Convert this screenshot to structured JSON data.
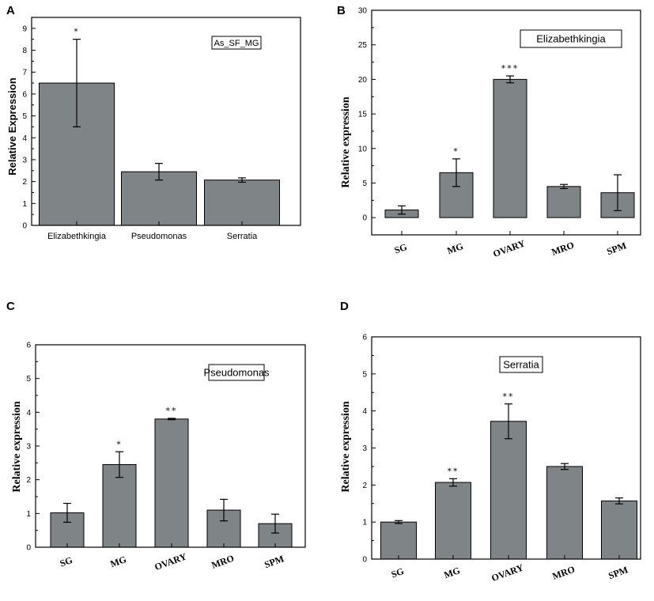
{
  "chart_data": [
    {
      "panel": "A",
      "type": "bar",
      "categories": [
        "Elizabethkingia",
        "Pseudomonas",
        "Serratia"
      ],
      "values": [
        6.5,
        2.45,
        2.07
      ],
      "errors": [
        2.0,
        0.38,
        0.1
      ],
      "significance": [
        "*",
        "",
        ""
      ],
      "ylabel": "Relative Expression",
      "legend": "As_SF_MG",
      "ylim": [
        0,
        9.5
      ],
      "yticks": [
        0,
        1,
        2,
        3,
        4,
        5,
        6,
        7,
        8,
        9
      ]
    },
    {
      "panel": "B",
      "type": "bar",
      "categories": [
        "SG",
        "MG",
        "OVARY",
        "MRO",
        "SPM"
      ],
      "values": [
        1.1,
        6.5,
        20.0,
        4.5,
        3.6
      ],
      "errors": [
        0.6,
        2.0,
        0.5,
        0.3,
        2.6
      ],
      "significance": [
        "",
        "*",
        "***",
        "",
        ""
      ],
      "ylabel": "Relative expression",
      "legend": "Elizabethkingia",
      "ylim": [
        -2.5,
        30
      ],
      "yticks": [
        0,
        5,
        10,
        15,
        20,
        25,
        30
      ]
    },
    {
      "panel": "C",
      "type": "bar",
      "categories": [
        "SG",
        "MG",
        "OVARY",
        "MRO",
        "SPM"
      ],
      "values": [
        1.02,
        2.45,
        3.8,
        1.1,
        0.7
      ],
      "errors": [
        0.28,
        0.38,
        0.02,
        0.32,
        0.28
      ],
      "significance": [
        "",
        "*",
        "**",
        "",
        ""
      ],
      "ylabel": "Relative expression",
      "legend": "Pseudomonas",
      "ylim": [
        0,
        6
      ],
      "yticks": [
        0,
        1,
        2,
        3,
        4,
        5,
        6
      ]
    },
    {
      "panel": "D",
      "type": "bar",
      "categories": [
        "SG",
        "MG",
        "OVARY",
        "MRO",
        "SPM"
      ],
      "values": [
        1.0,
        2.07,
        3.72,
        2.5,
        1.57
      ],
      "errors": [
        0.04,
        0.1,
        0.47,
        0.08,
        0.08
      ],
      "significance": [
        "",
        "**",
        "**",
        "",
        ""
      ],
      "ylabel": "Relative expression",
      "legend": "Serratia",
      "ylim": [
        0,
        6
      ],
      "yticks": [
        0,
        1,
        2,
        3,
        4,
        5,
        6
      ]
    }
  ],
  "colors": {
    "bar": "#7f8486",
    "axis": "#000000"
  }
}
